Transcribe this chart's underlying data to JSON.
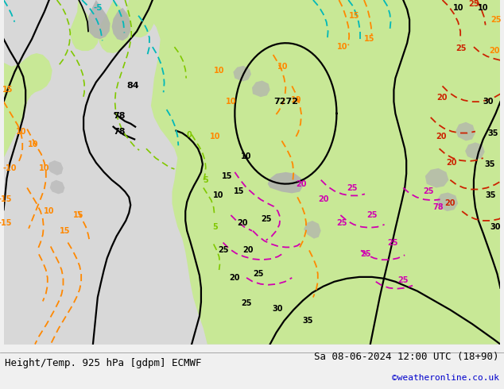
{
  "title_left": "Height/Temp. 925 hPa [gdpm] ECMWF",
  "title_right": "Sa 08-06-2024 12:00 UTC (18+90)",
  "credit": "©weatheronline.co.uk",
  "bg_color": "#f0f0f0",
  "footer_fontsize": 9,
  "credit_fontsize": 8,
  "credit_color": "#0000cc",
  "fig_width": 6.34,
  "fig_height": 4.9,
  "dpi": 100,
  "map_gray": "#d8d8d8",
  "map_green": "#c8e896",
  "map_green2": "#b8e080",
  "gray_patch": "#b0b0b0",
  "black": "#000000",
  "cyan": "#00b8b8",
  "orange": "#ff8800",
  "lime": "#80c800",
  "magenta": "#d000b0",
  "red": "#cc2200",
  "darkred": "#880000",
  "footer_line_color": "#888888"
}
